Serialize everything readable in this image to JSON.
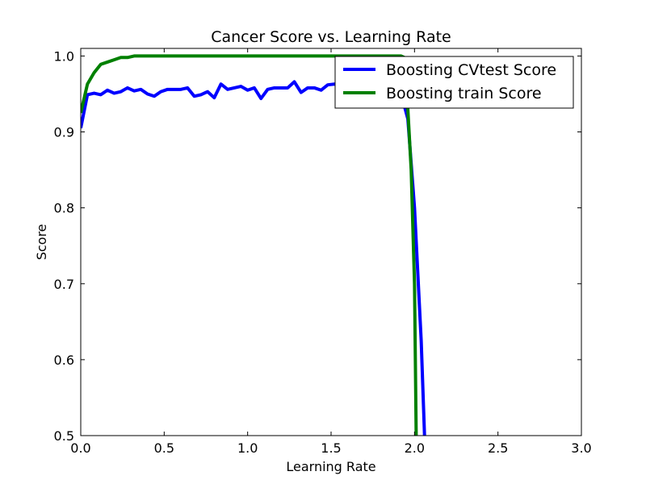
{
  "chart_data": {
    "type": "line",
    "title": "Cancer Score vs. Learning Rate",
    "xlabel": "Learning Rate",
    "ylabel": "Score",
    "xlim": [
      0.0,
      3.0
    ],
    "ylim": [
      0.5,
      1.01
    ],
    "xticks": [
      "0.0",
      "0.5",
      "1.0",
      "1.5",
      "2.0",
      "2.5",
      "3.0"
    ],
    "yticks": [
      "0.5",
      "0.6",
      "0.7",
      "0.8",
      "0.9",
      "1.0"
    ],
    "grid": false,
    "legend_position": "top-right",
    "series": [
      {
        "name": "Boosting CVtest Score",
        "color": "#0000ff",
        "x": [
          0.0,
          0.04,
          0.08,
          0.12,
          0.16,
          0.2,
          0.24,
          0.28,
          0.32,
          0.36,
          0.4,
          0.44,
          0.48,
          0.52,
          0.56,
          0.6,
          0.64,
          0.68,
          0.72,
          0.76,
          0.8,
          0.84,
          0.88,
          0.92,
          0.96,
          1.0,
          1.04,
          1.08,
          1.12,
          1.16,
          1.2,
          1.24,
          1.28,
          1.32,
          1.36,
          1.4,
          1.44,
          1.48,
          1.52,
          1.56,
          1.6,
          1.64,
          1.68,
          1.72,
          1.76,
          1.8,
          1.84,
          1.88,
          1.92,
          1.96,
          2.0,
          2.04,
          2.06
        ],
        "y": [
          0.905,
          0.949,
          0.951,
          0.949,
          0.955,
          0.951,
          0.953,
          0.958,
          0.954,
          0.956,
          0.95,
          0.947,
          0.953,
          0.956,
          0.956,
          0.956,
          0.958,
          0.947,
          0.949,
          0.953,
          0.945,
          0.963,
          0.956,
          0.958,
          0.96,
          0.955,
          0.958,
          0.944,
          0.956,
          0.958,
          0.958,
          0.958,
          0.966,
          0.952,
          0.958,
          0.958,
          0.955,
          0.962,
          0.963,
          0.962,
          0.962,
          0.96,
          0.962,
          0.962,
          0.962,
          0.962,
          0.962,
          0.96,
          0.95,
          0.917,
          0.8,
          0.625,
          0.5
        ]
      },
      {
        "name": "Boosting train Score",
        "color": "#008000",
        "x": [
          0.0,
          0.04,
          0.08,
          0.12,
          0.16,
          0.2,
          0.24,
          0.28,
          0.32,
          0.36,
          0.5,
          1.0,
          1.5,
          1.9,
          1.92,
          1.94,
          1.96,
          1.98,
          2.0,
          2.01
        ],
        "y": [
          0.925,
          0.963,
          0.978,
          0.989,
          0.992,
          0.995,
          0.998,
          0.998,
          1.0,
          1.0,
          1.0,
          1.0,
          1.0,
          1.0,
          1.0,
          0.998,
          0.93,
          0.85,
          0.7,
          0.5
        ]
      }
    ]
  }
}
